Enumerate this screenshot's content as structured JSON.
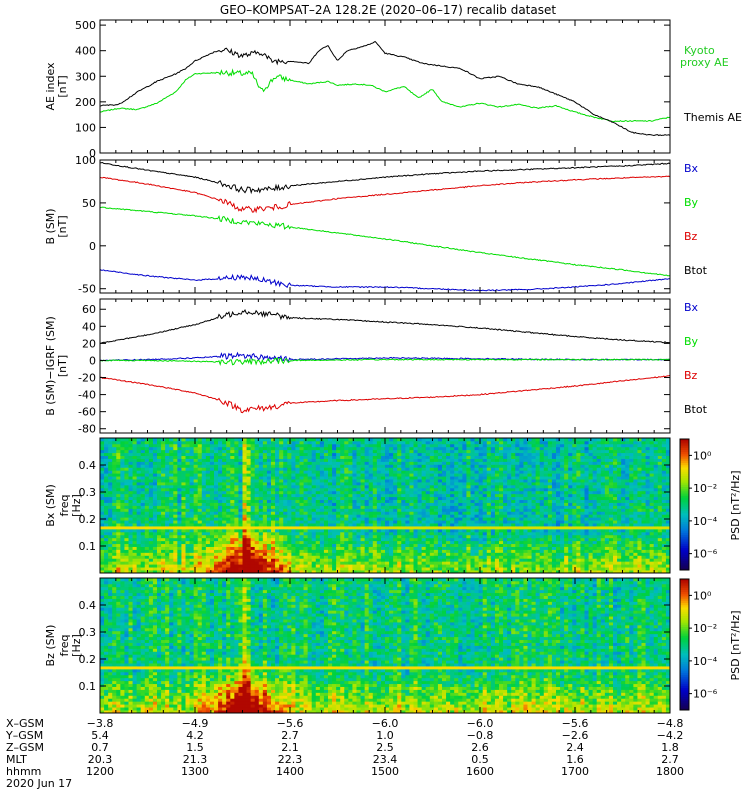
{
  "title": "GEO–KOMPSAT–2A 128.2E (2020–06–17) recalib dataset",
  "colors": {
    "black": "#000000",
    "red": "#dd0000",
    "green": "#00dd00",
    "blue": "#0000cc",
    "kyoto_label": "#22cc22"
  },
  "chart_data": [
    {
      "type": "line",
      "panel": "ae",
      "ylabel": "AE index",
      "yunit": "[nT]",
      "ylim": [
        0,
        520
      ],
      "yticks": [
        "0",
        "100",
        "200",
        "300",
        "400",
        "500"
      ],
      "ytick_values": [
        0,
        100,
        200,
        300,
        400,
        500
      ],
      "xlim": [
        12.0,
        18.0
      ],
      "series": [
        {
          "name": "Kyoto proxy AE",
          "color": "#00dd00",
          "x": [
            12.0,
            12.2,
            12.4,
            12.6,
            12.8,
            12.9,
            13.0,
            13.3,
            13.5,
            13.6,
            13.7,
            13.85,
            14.0,
            14.2,
            14.4,
            14.5,
            14.7,
            14.85,
            15.0,
            15.2,
            15.35,
            15.5,
            15.6,
            15.8,
            16.0,
            16.2,
            16.4,
            16.6,
            16.8,
            17.0,
            17.2,
            17.4,
            17.6,
            17.8,
            18.0
          ],
          "y": [
            160,
            175,
            170,
            195,
            240,
            285,
            310,
            315,
            310,
            310,
            240,
            300,
            285,
            270,
            280,
            265,
            270,
            265,
            240,
            260,
            215,
            250,
            200,
            180,
            195,
            180,
            190,
            175,
            185,
            160,
            140,
            125,
            125,
            125,
            140
          ]
        },
        {
          "name": "Themis AE",
          "color": "#000000",
          "x": [
            12.0,
            12.2,
            12.4,
            12.6,
            12.8,
            12.9,
            13.0,
            13.2,
            13.3,
            13.5,
            13.7,
            13.8,
            14.0,
            14.2,
            14.3,
            14.4,
            14.5,
            14.6,
            14.8,
            14.9,
            15.0,
            15.2,
            15.4,
            15.6,
            15.8,
            16.0,
            16.2,
            16.4,
            16.6,
            16.8,
            17.0,
            17.2,
            17.4,
            17.6,
            17.8,
            18.0
          ],
          "y": [
            185,
            190,
            240,
            280,
            310,
            330,
            360,
            395,
            405,
            380,
            395,
            360,
            360,
            350,
            400,
            420,
            360,
            400,
            420,
            435,
            390,
            375,
            350,
            340,
            330,
            290,
            300,
            270,
            260,
            230,
            200,
            150,
            120,
            80,
            70,
            70
          ]
        }
      ]
    },
    {
      "type": "line",
      "panel": "bsm",
      "ylabel": "B (SM)",
      "yunit": "[nT]",
      "ylim": [
        -55,
        100
      ],
      "yticks": [
        "-50",
        "0",
        "50",
        "100"
      ],
      "ytick_values": [
        -50,
        0,
        50,
        100
      ],
      "xlim": [
        12.0,
        18.0
      ],
      "series": [
        {
          "name": "Btot",
          "color": "#000000",
          "x": [
            12.0,
            12.5,
            13.0,
            13.3,
            13.5,
            13.8,
            14.0,
            14.5,
            15.0,
            15.5,
            16.0,
            16.5,
            17.0,
            17.5,
            18.0
          ],
          "y": [
            97,
            88,
            80,
            72,
            65,
            66,
            70,
            75,
            80,
            84,
            87,
            89,
            91,
            93,
            96
          ]
        },
        {
          "name": "Bz",
          "color": "#dd0000",
          "x": [
            12.0,
            12.5,
            13.0,
            13.3,
            13.5,
            13.8,
            14.0,
            14.5,
            15.0,
            15.5,
            16.0,
            16.5,
            17.0,
            17.5,
            18.0
          ],
          "y": [
            80,
            72,
            62,
            52,
            42,
            44,
            48,
            55,
            60,
            65,
            70,
            74,
            77,
            79,
            81
          ]
        },
        {
          "name": "By",
          "color": "#00dd00",
          "x": [
            12.0,
            12.5,
            13.0,
            13.5,
            14.0,
            14.5,
            15.0,
            15.5,
            16.0,
            16.5,
            17.0,
            17.5,
            18.0
          ],
          "y": [
            45,
            40,
            35,
            28,
            22,
            15,
            8,
            0,
            -8,
            -15,
            -22,
            -28,
            -35
          ]
        },
        {
          "name": "Bx",
          "color": "#0000cc",
          "x": [
            12.0,
            12.5,
            13.0,
            13.3,
            13.5,
            13.8,
            14.0,
            14.5,
            15.0,
            15.5,
            16.0,
            16.5,
            17.0,
            17.5,
            18.0
          ],
          "y": [
            -28,
            -35,
            -40,
            -38,
            -36,
            -42,
            -46,
            -48,
            -48,
            -50,
            -52,
            -51,
            -48,
            -44,
            -38
          ]
        }
      ],
      "legend": [
        "Bx",
        "By",
        "Bz",
        "Btot"
      ],
      "legend_colors": [
        "#0000cc",
        "#00dd00",
        "#dd0000",
        "#000000"
      ]
    },
    {
      "type": "line",
      "panel": "bsm-igrf",
      "ylabel": "B (SM)−IGRF (SM)",
      "yunit": "[nT]",
      "ylim": [
        -85,
        72
      ],
      "yticks": [
        "-80",
        "-60",
        "-40",
        "-20",
        "0",
        "20",
        "40",
        "60"
      ],
      "ytick_values": [
        -80,
        -60,
        -40,
        -20,
        0,
        20,
        40,
        60
      ],
      "xlim": [
        12.0,
        18.0
      ],
      "series": [
        {
          "name": "Btot",
          "color": "#000000",
          "x": [
            12.0,
            12.5,
            13.0,
            13.3,
            13.5,
            13.8,
            14.0,
            14.5,
            15.0,
            15.5,
            16.0,
            16.5,
            17.0,
            17.5,
            18.0
          ],
          "y": [
            20,
            30,
            42,
            52,
            58,
            54,
            50,
            48,
            45,
            42,
            38,
            33,
            28,
            24,
            21
          ]
        },
        {
          "name": "Bx",
          "color": "#0000cc",
          "x": [
            12.0,
            12.5,
            13.0,
            13.5,
            14.0,
            15.0,
            16.0,
            17.0,
            18.0
          ],
          "y": [
            0,
            1,
            3,
            6,
            1,
            3,
            2,
            1,
            1
          ]
        },
        {
          "name": "By",
          "color": "#00dd00",
          "x": [
            12.0,
            12.5,
            13.0,
            13.5,
            14.0,
            15.0,
            16.0,
            17.0,
            18.0
          ],
          "y": [
            0,
            0,
            -1,
            -2,
            0,
            1,
            1,
            1,
            1
          ]
        },
        {
          "name": "Bz",
          "color": "#dd0000",
          "x": [
            12.0,
            12.5,
            13.0,
            13.3,
            13.5,
            13.8,
            14.0,
            14.5,
            15.0,
            15.5,
            16.0,
            16.5,
            17.0,
            17.5,
            18.0
          ],
          "y": [
            -20,
            -28,
            -38,
            -48,
            -58,
            -55,
            -50,
            -47,
            -45,
            -43,
            -40,
            -35,
            -30,
            -24,
            -18
          ]
        }
      ],
      "legend": [
        "Bx",
        "By",
        "Bz",
        "Btot"
      ],
      "legend_colors": [
        "#0000cc",
        "#00dd00",
        "#dd0000",
        "#000000"
      ]
    },
    {
      "type": "heatmap",
      "panel": "bx-spectrogram",
      "ylabel": "Bx (SM)",
      "ylabel2": "freq",
      "yunit": "[Hz]",
      "ylim": [
        0,
        0.5
      ],
      "yticks": [
        "0.1",
        "0.2",
        "0.3",
        "0.4"
      ],
      "ytick_values": [
        0.1,
        0.2,
        0.3,
        0.4
      ],
      "xlim": [
        12.0,
        18.0
      ],
      "colorbar_label": "PSD [nT²/Hz]",
      "colorbar_ticks": [
        "10⁰",
        "10⁻²",
        "10⁻⁴",
        "10⁻⁶"
      ],
      "colorbar_tick_exponents": [
        0,
        -2,
        -4,
        -6
      ],
      "zlim_log10": [
        -7,
        1
      ]
    },
    {
      "type": "heatmap",
      "panel": "bz-spectrogram",
      "ylabel": "Bz (SM)",
      "ylabel2": "freq",
      "yunit": "[Hz]",
      "ylim": [
        0,
        0.5
      ],
      "yticks": [
        "0.1",
        "0.2",
        "0.3",
        "0.4"
      ],
      "ytick_values": [
        0.1,
        0.2,
        0.3,
        0.4
      ],
      "xlim": [
        12.0,
        18.0
      ],
      "colorbar_label": "PSD [nT²/Hz]",
      "colorbar_ticks": [
        "10⁰",
        "10⁻²",
        "10⁻⁴",
        "10⁻⁶"
      ],
      "colorbar_tick_exponents": [
        0,
        -2,
        -4,
        -6
      ],
      "zlim_log10": [
        -7,
        1
      ]
    }
  ],
  "ae_legend": {
    "kyoto_line1": "Kyoto",
    "kyoto_line2": "proxy AE",
    "themis": "Themis AE"
  },
  "ephemeris": {
    "rows": [
      {
        "label": "X–GSM",
        "values": [
          "−3.8",
          "−4.9",
          "−5.6",
          "−6.0",
          "−6.0",
          "−5.6",
          "−4.8"
        ]
      },
      {
        "label": "Y–GSM",
        "values": [
          "5.4",
          "4.2",
          "2.7",
          "1.0",
          "−0.8",
          "−2.6",
          "−4.2"
        ]
      },
      {
        "label": "Z–GSM",
        "values": [
          "0.7",
          "1.5",
          "2.1",
          "2.5",
          "2.6",
          "2.4",
          "1.8"
        ]
      },
      {
        "label": "MLT",
        "values": [
          "20.3",
          "21.3",
          "22.3",
          "23.4",
          "0.5",
          "1.6",
          "2.7"
        ]
      },
      {
        "label": "hhmm",
        "values": [
          "1200",
          "1300",
          "1400",
          "1500",
          "1600",
          "1700",
          "1800"
        ]
      }
    ],
    "date": "2020 Jun 17"
  }
}
